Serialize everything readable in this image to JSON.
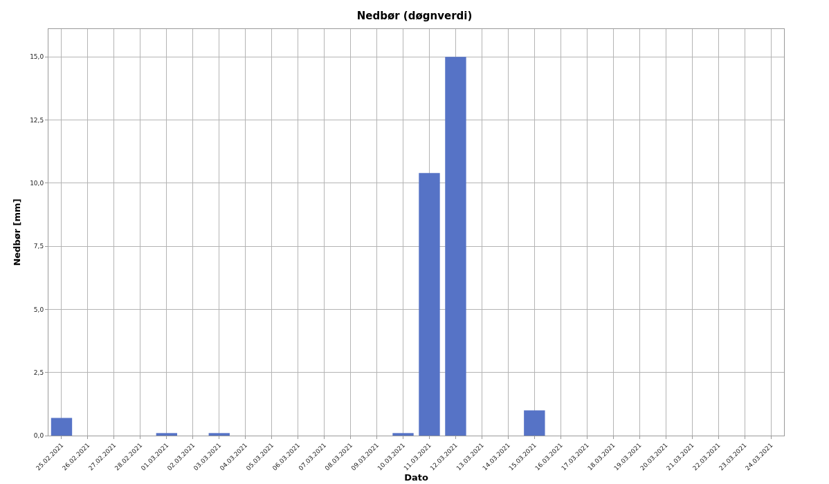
{
  "chart_data": {
    "type": "bar",
    "title": "Nedbør (døgnverdi)",
    "xlabel": "Dato",
    "ylabel": "Nedbør [mm]",
    "categories": [
      "25.02.2021",
      "26.02.2021",
      "27.02.2021",
      "28.02.2021",
      "01.03.2021",
      "02.03.2021",
      "03.03.2021",
      "04.03.2021",
      "05.03.2021",
      "06.03.2021",
      "07.03.2021",
      "08.03.2021",
      "09.03.2021",
      "10.03.2021",
      "11.03.2021",
      "12.03.2021",
      "13.03.2021",
      "14.03.2021",
      "15.03.2021",
      "16.03.2021",
      "17.03.2021",
      "18.03.2021",
      "19.03.2021",
      "20.03.2021",
      "21.03.2021",
      "22.03.2021",
      "23.03.2021",
      "24.03.2021"
    ],
    "values": [
      0.7,
      0,
      0,
      0,
      0.1,
      0,
      0.1,
      0,
      0,
      0,
      0,
      0,
      0,
      0.1,
      10.4,
      15.0,
      0,
      0,
      1.0,
      0,
      0,
      0,
      0,
      0,
      0,
      0,
      0,
      0
    ],
    "color": "#5673c6",
    "ylim": [
      0,
      16.1
    ],
    "yticks": [
      {
        "value": 0,
        "label": "0,0"
      },
      {
        "value": 2.5,
        "label": "2,5"
      },
      {
        "value": 5,
        "label": "5,0"
      },
      {
        "value": 7.5,
        "label": "7,5"
      },
      {
        "value": 10,
        "label": "10,0"
      },
      {
        "value": 12.5,
        "label": "12,5"
      },
      {
        "value": 15,
        "label": "15,0"
      }
    ],
    "grid": true
  }
}
